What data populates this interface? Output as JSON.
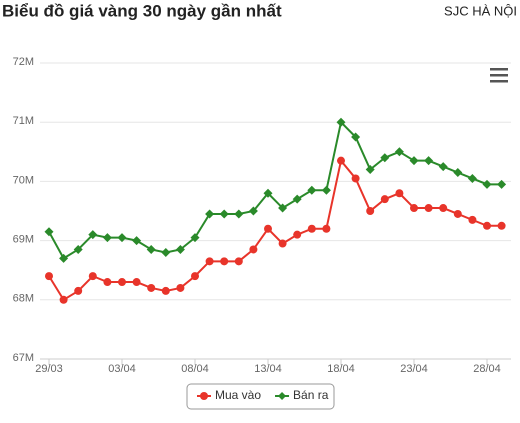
{
  "chart_data": {
    "type": "line",
    "title": "Biểu đồ giá vàng 30 ngày gần nhất",
    "subtitle": "SJC HÀ NỘI",
    "categories": [
      "29/03",
      null,
      null,
      null,
      null,
      "03/04",
      null,
      null,
      null,
      null,
      "08/04",
      null,
      null,
      null,
      null,
      "13/04",
      null,
      null,
      null,
      null,
      "18/04",
      null,
      null,
      null,
      null,
      "23/04",
      null,
      null,
      null,
      null,
      "28/04",
      null
    ],
    "series": [
      {
        "name": "Mua vào",
        "color": "#e8342a",
        "marker": "circle",
        "values": [
          68.4,
          68.0,
          68.15,
          68.4,
          68.3,
          68.3,
          68.3,
          68.2,
          68.15,
          68.2,
          68.4,
          68.65,
          68.65,
          68.65,
          68.85,
          69.2,
          68.95,
          69.1,
          69.2,
          69.2,
          70.35,
          70.05,
          69.5,
          69.7,
          69.8,
          69.55,
          69.55,
          69.55,
          69.45,
          69.35,
          69.25,
          69.25
        ]
      },
      {
        "name": "Bán ra",
        "color": "#2a8a2a",
        "marker": "diamond",
        "values": [
          69.15,
          68.7,
          68.85,
          69.1,
          69.05,
          69.05,
          69.0,
          68.85,
          68.8,
          68.85,
          69.05,
          69.45,
          69.45,
          69.45,
          69.5,
          69.8,
          69.55,
          69.7,
          69.85,
          69.85,
          71.0,
          70.75,
          70.2,
          70.4,
          70.5,
          70.35,
          70.35,
          70.25,
          70.15,
          70.05,
          69.95,
          69.95
        ]
      }
    ],
    "ylim": [
      67,
      72
    ],
    "yticks": [
      {
        "value": 67,
        "label": "67M"
      },
      {
        "value": 68,
        "label": "68M"
      },
      {
        "value": 69,
        "label": "69M"
      },
      {
        "value": 70,
        "label": "70M"
      },
      {
        "value": 71,
        "label": "71M"
      },
      {
        "value": 72,
        "label": "72M"
      }
    ],
    "grid": true
  }
}
